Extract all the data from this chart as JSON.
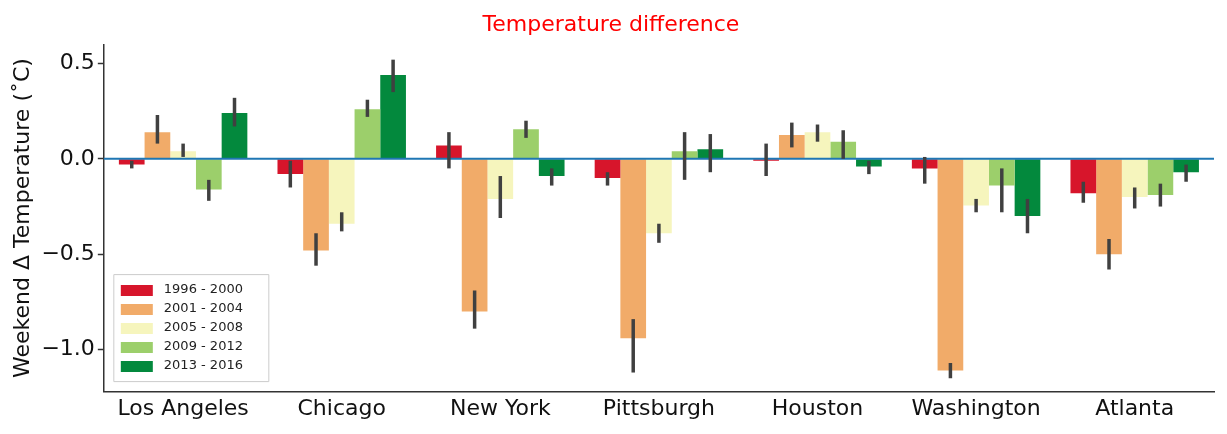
{
  "chart_data": {
    "type": "bar",
    "title": "Temperature difference",
    "ylabel": "Weekend Δ Temperature (˚C)",
    "categories": [
      "Los Angeles",
      "Chicago",
      "New York",
      "Pittsburgh",
      "Houston",
      "Washington",
      "Atlanta"
    ],
    "series": [
      {
        "name": "1996 - 2000",
        "color": "#d7152b",
        "values": [
          -0.03,
          -0.08,
          0.07,
          -0.1,
          -0.01,
          -0.05,
          -0.18
        ],
        "errors": [
          [
            -0.05,
            -0.01
          ],
          [
            -0.15,
            -0.01
          ],
          [
            -0.05,
            0.14
          ],
          [
            -0.14,
            -0.07
          ],
          [
            -0.09,
            0.08
          ],
          [
            -0.13,
            0.01
          ],
          [
            -0.23,
            -0.12
          ]
        ]
      },
      {
        "name": "2001 - 2004",
        "color": "#f1ab69",
        "values": [
          0.14,
          -0.48,
          -0.8,
          -0.94,
          0.125,
          -1.11,
          -0.5
        ],
        "errors": [
          [
            0.08,
            0.23
          ],
          [
            -0.56,
            -0.39
          ],
          [
            -0.89,
            -0.69
          ],
          [
            -1.12,
            -0.84
          ],
          [
            0.06,
            0.19
          ],
          [
            -1.15,
            -1.07
          ],
          [
            -0.58,
            -0.42
          ]
        ]
      },
      {
        "name": "2005 - 2008",
        "color": "#f6f5bd",
        "values": [
          0.04,
          -0.34,
          -0.21,
          -0.39,
          0.14,
          -0.245,
          -0.2
        ],
        "errors": [
          [
            0.01,
            0.08
          ],
          [
            -0.38,
            -0.28
          ],
          [
            -0.31,
            -0.09
          ],
          [
            -0.44,
            -0.34
          ],
          [
            0.09,
            0.18
          ],
          [
            -0.28,
            -0.21
          ],
          [
            -0.26,
            -0.15
          ]
        ]
      },
      {
        "name": "2009 - 2012",
        "color": "#9ccf6b",
        "values": [
          -0.16,
          0.26,
          0.155,
          0.04,
          0.09,
          -0.14,
          -0.19
        ],
        "errors": [
          [
            -0.22,
            -0.11
          ],
          [
            0.22,
            0.31
          ],
          [
            0.11,
            0.2
          ],
          [
            -0.11,
            0.14
          ],
          [
            0.0,
            0.15
          ],
          [
            -0.28,
            -0.05
          ],
          [
            -0.25,
            -0.13
          ]
        ]
      },
      {
        "name": "2013 - 2016",
        "color": "#03893d",
        "values": [
          0.24,
          0.44,
          -0.09,
          0.05,
          -0.04,
          -0.3,
          -0.07
        ],
        "errors": [
          [
            0.17,
            0.32
          ],
          [
            0.35,
            0.52
          ],
          [
            -0.14,
            -0.05
          ],
          [
            -0.07,
            0.13
          ],
          [
            -0.08,
            -0.01
          ],
          [
            -0.39,
            -0.21
          ],
          [
            -0.12,
            -0.03
          ]
        ]
      }
    ],
    "ylim": [
      -1.22,
      0.6
    ],
    "yticks": [
      0.5,
      {
        "value": 0,
        "label": "0.0"
      },
      {
        "value": -0.5,
        "label": "−0.5"
      },
      {
        "value": -1,
        "label": "−1.0"
      }
    ],
    "ref_lines": [
      {
        "axis": "y",
        "value": 0,
        "color": "#1f77b4"
      }
    ],
    "legend": "bottom left",
    "grid": false
  }
}
